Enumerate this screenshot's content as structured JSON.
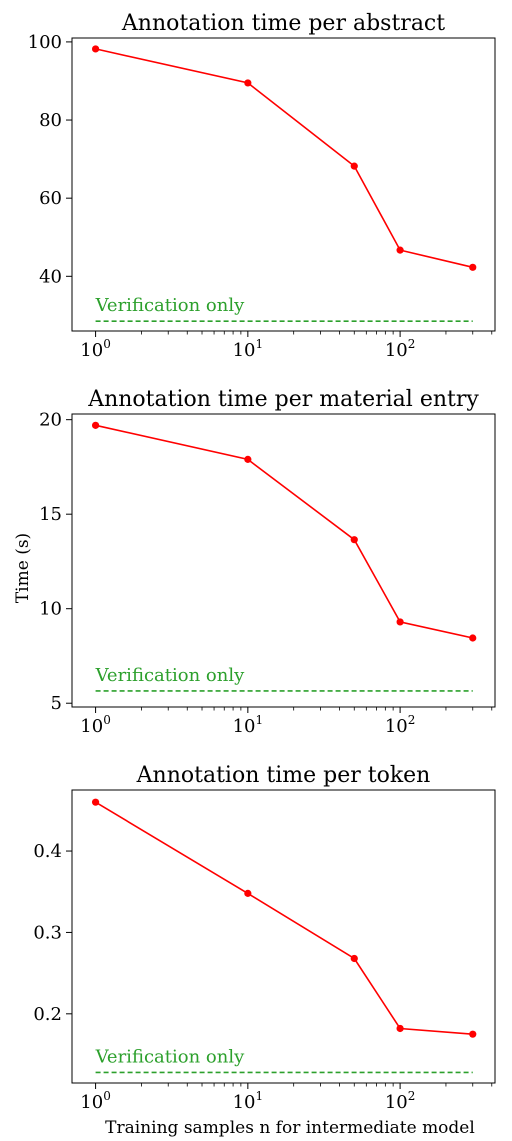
{
  "figure": {
    "shared_ylabel": "Time (s)",
    "shared_xlabel": "Training samples n for intermediate model"
  },
  "chart_data": [
    {
      "type": "line",
      "title": "Annotation time per abstract",
      "x_scale": "log",
      "x_ticks": [
        1,
        10,
        100
      ],
      "x_tick_labels": [
        "10",
        "10",
        "10"
      ],
      "x_tick_exponents": [
        "0",
        "1",
        "2"
      ],
      "y_ticks": [
        40,
        60,
        80,
        100
      ],
      "y_tick_labels": [
        "40",
        "60",
        "80",
        "100"
      ],
      "ylim": [
        26,
        101
      ],
      "x": [
        1,
        10,
        50,
        100,
        300
      ],
      "series": [
        {
          "color": "#ff0000",
          "values": [
            98.2,
            89.5,
            68.2,
            46.7,
            42.3
          ]
        }
      ],
      "reference_line": {
        "label": "Verification only",
        "value": 28.5,
        "color": "#2ca02c",
        "style": "dashed"
      },
      "grid": false
    },
    {
      "type": "line",
      "title": "Annotation time per material entry",
      "x_scale": "log",
      "x_ticks": [
        1,
        10,
        100
      ],
      "x_tick_labels": [
        "10",
        "10",
        "10"
      ],
      "x_tick_exponents": [
        "0",
        "1",
        "2"
      ],
      "y_ticks": [
        5,
        10,
        15,
        20
      ],
      "y_tick_labels": [
        "5",
        "10",
        "15",
        "20"
      ],
      "ylim": [
        4.8,
        20.3
      ],
      "x": [
        1,
        10,
        50,
        100,
        300
      ],
      "series": [
        {
          "color": "#ff0000",
          "values": [
            19.7,
            17.9,
            13.65,
            9.3,
            8.45
          ]
        }
      ],
      "reference_line": {
        "label": "Verification only",
        "value": 5.65,
        "color": "#2ca02c",
        "style": "dashed"
      },
      "grid": false
    },
    {
      "type": "line",
      "title": "Annotation time per token",
      "x_scale": "log",
      "x_ticks": [
        1,
        10,
        100
      ],
      "x_tick_labels": [
        "10",
        "10",
        "10"
      ],
      "x_tick_exponents": [
        "0",
        "1",
        "2"
      ],
      "y_ticks": [
        0.2,
        0.3,
        0.4
      ],
      "y_tick_labels": [
        "0.2",
        "0.3",
        "0.4"
      ],
      "ylim": [
        0.115,
        0.475
      ],
      "x": [
        1,
        10,
        50,
        100,
        300
      ],
      "series": [
        {
          "color": "#ff0000",
          "values": [
            0.46,
            0.348,
            0.268,
            0.182,
            0.175
          ]
        }
      ],
      "reference_line": {
        "label": "Verification only",
        "value": 0.128,
        "color": "#2ca02c",
        "style": "dashed"
      },
      "grid": false
    }
  ]
}
